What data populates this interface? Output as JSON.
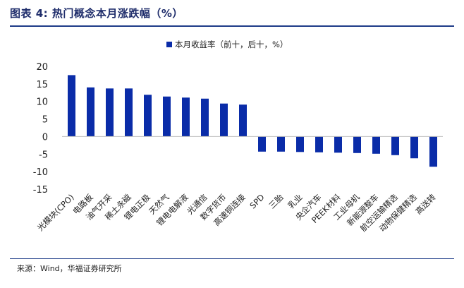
{
  "figure": {
    "title": "图表 4:  热门概念本月涨跌幅（%）",
    "source": "来源：Wind，华福证券研究所"
  },
  "colors": {
    "bar": "#0a2ca8",
    "axis": "#bfbfbf",
    "rule": "#1f3c88"
  },
  "chart_data": {
    "type": "bar",
    "categories": [
      "光模块(CPO)",
      "电路板",
      "油气开采",
      "稀土永磁",
      "锂电正极",
      "天然气",
      "锂电电解液",
      "光通信",
      "数字货币",
      "高速铜连接",
      "SPD",
      "三胎",
      "乳业",
      "央企汽车",
      "PEEK材料",
      "工业母机",
      "新能源整车",
      "航空运输精选",
      "动物保健精选",
      "高送转"
    ],
    "series": [
      {
        "name": "本月收益率（前十，后十，%）",
        "values": [
          17.5,
          14.0,
          13.7,
          13.7,
          11.9,
          11.4,
          11.1,
          10.8,
          9.4,
          9.1,
          -4.3,
          -4.3,
          -4.4,
          -4.5,
          -4.6,
          -4.7,
          -4.9,
          -5.3,
          -6.2,
          -8.6
        ]
      }
    ],
    "yticks": [
      20,
      15,
      10,
      5,
      0,
      -5,
      -10,
      -15
    ],
    "ylim": [
      -15,
      20
    ],
    "grid": false,
    "legend": "top-center"
  }
}
